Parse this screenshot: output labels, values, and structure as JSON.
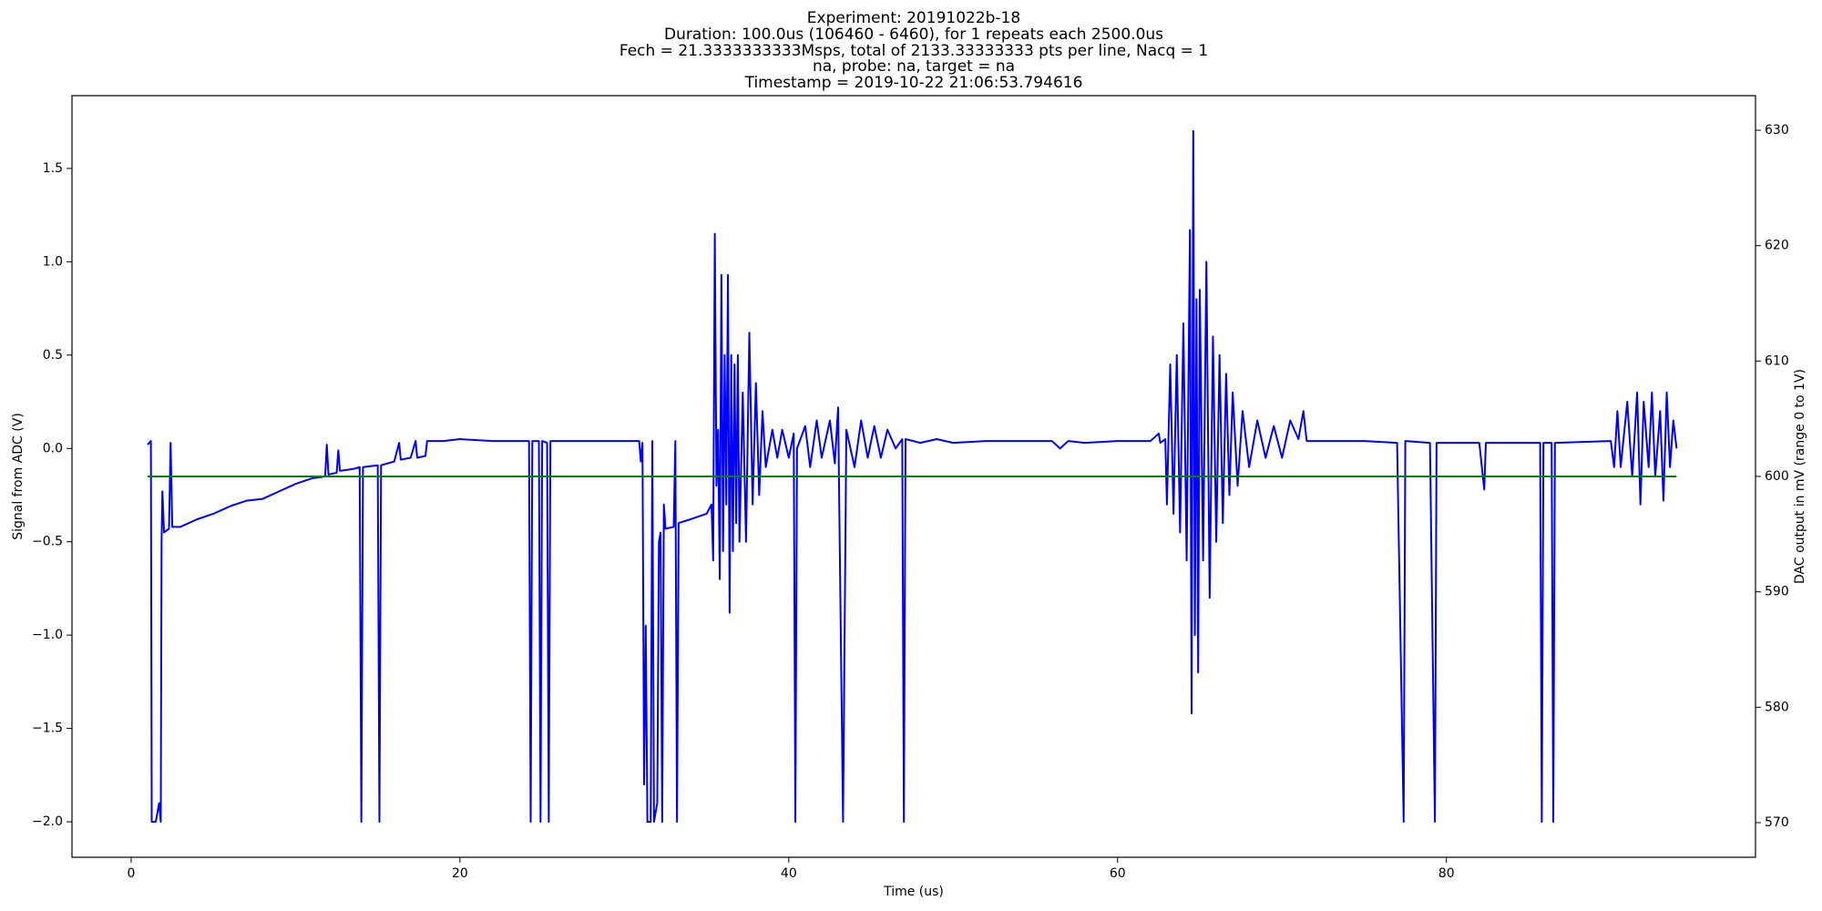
{
  "chart_data": {
    "type": "line",
    "title": [
      "Experiment: 20191022b-18",
      "Duration: 100.0us (106460 - 6460), for 1 repeats each 2500.0us",
      "Fech = 21.3333333333Msps, total of 2133.33333333 pts per line, Nacq = 1",
      "na, probe: na, target = na",
      "Timestamp = 2019-10-22 21:06:53.794616"
    ],
    "xlabel": "Time (us)",
    "ylabel": "Signal from ADC (V)",
    "y2label": "DAC output in mV (range 0 to 1V)",
    "ylabel_color": "#0000ff",
    "y2label_color": "#008000",
    "xlim": [
      -3.6,
      98.8
    ],
    "ylim": [
      -2.19,
      1.89
    ],
    "y2lim": [
      567,
      633
    ],
    "xticks": [
      0,
      20,
      40,
      60,
      80
    ],
    "yticks": [
      {
        "value": -2.0,
        "label": "−2.0"
      },
      {
        "value": -1.5,
        "label": "−1.5"
      },
      {
        "value": -1.0,
        "label": "−1.0"
      },
      {
        "value": -0.5,
        "label": "−0.5"
      },
      {
        "value": 0.0,
        "label": "0.0"
      },
      {
        "value": 0.5,
        "label": "0.5"
      },
      {
        "value": 1.0,
        "label": "1.0"
      },
      {
        "value": 1.5,
        "label": "1.5"
      }
    ],
    "y2ticks": [
      570,
      580,
      590,
      600,
      610,
      620,
      630
    ],
    "grid": false,
    "series": [
      {
        "color": "#0000ff",
        "x": [
          1.0,
          1.1,
          1.2,
          1.25,
          1.5,
          1.7,
          1.8,
          1.85,
          1.9,
          2.0,
          2.3,
          2.4,
          2.5,
          3,
          4,
          5,
          6,
          7,
          8,
          9,
          10,
          11,
          11.8,
          11.9,
          12,
          12.5,
          12.6,
          12.7,
          13.5,
          13.9,
          14.0,
          14.1,
          15,
          15.1,
          15.2,
          16,
          16.3,
          16.4,
          17,
          17.3,
          17.4,
          17.9,
          18,
          19,
          20,
          22,
          24.2,
          24.3,
          24.4,
          24.8,
          24.9,
          25,
          25.3,
          25.4,
          25.5,
          28,
          30.9,
          31,
          31.1,
          31.2,
          31.3,
          31.4,
          31.6,
          31.7,
          31.8,
          32,
          32.1,
          32.2,
          32.3,
          32.4,
          32.5,
          33,
          33.1,
          33.2,
          33.3,
          34,
          35,
          35.3,
          35.4,
          35.5,
          35.6,
          35.7,
          35.8,
          35.9,
          36,
          36.1,
          36.2,
          36.3,
          36.4,
          36.5,
          36.6,
          36.7,
          36.8,
          36.9,
          37,
          37.2,
          37.4,
          37.6,
          37.8,
          38,
          38.2,
          38.4,
          38.6,
          39,
          39.3,
          39.6,
          40,
          40.3,
          40.4,
          40.5,
          41,
          41.3,
          41.7,
          42,
          42.5,
          42.8,
          43,
          43.3,
          43.5,
          44,
          44.4,
          44.8,
          45.2,
          45.6,
          46,
          46.5,
          46.9,
          47,
          47.1,
          48,
          49,
          50,
          52,
          54,
          56,
          56.5,
          57,
          58,
          60,
          62,
          62.5,
          62.6,
          62.9,
          63.0,
          63.2,
          63.4,
          63.6,
          63.8,
          64,
          64.2,
          64.4,
          64.5,
          64.6,
          64.7,
          64.8,
          64.9,
          65,
          65.2,
          65.4,
          65.6,
          65.8,
          66,
          66.2,
          66.4,
          66.6,
          66.8,
          67,
          67.3,
          67.6,
          68,
          68.5,
          69,
          69.5,
          70,
          70.5,
          71,
          71.3,
          71.5,
          73,
          75,
          77,
          77.4,
          77.5,
          79,
          79.3,
          79.4,
          82,
          82.3,
          82.4,
          85.7,
          85.8,
          85.9,
          86.4,
          86.5,
          86.6,
          90,
          90.2,
          90.4,
          90.6,
          91,
          91.3,
          91.6,
          91.8,
          92,
          92.3,
          92.5,
          92.7,
          93,
          93.2,
          93.4,
          93.6,
          93.8,
          94
        ],
        "values": [
          0.02,
          0.03,
          0.04,
          -2.0,
          -2.0,
          -1.9,
          -2.0,
          -0.5,
          -0.23,
          -0.45,
          -0.43,
          0.03,
          -0.42,
          -0.42,
          -0.38,
          -0.35,
          -0.31,
          -0.28,
          -0.27,
          -0.23,
          -0.19,
          -0.16,
          -0.15,
          0.02,
          -0.14,
          -0.13,
          -0.01,
          -0.12,
          -0.11,
          -0.1,
          -2.0,
          -0.1,
          -0.09,
          -2.0,
          -0.09,
          -0.07,
          0.03,
          -0.06,
          -0.05,
          0.04,
          -0.05,
          -0.04,
          0.04,
          0.04,
          0.05,
          0.04,
          0.04,
          -2.0,
          0.04,
          0.04,
          -2.0,
          0.04,
          0.03,
          -2.0,
          0.04,
          0.04,
          0.04,
          -0.07,
          0.03,
          -1.8,
          -0.95,
          -2.0,
          -2.0,
          0.04,
          -2.0,
          -1.9,
          -0.5,
          -0.45,
          -2.0,
          -0.3,
          -0.43,
          -0.42,
          0.04,
          -2.0,
          -0.4,
          -0.38,
          -0.35,
          -0.3,
          -0.6,
          1.15,
          -0.2,
          0.1,
          -0.7,
          0.93,
          -0.55,
          0.5,
          -0.3,
          0.93,
          -0.88,
          0.5,
          -0.55,
          0.45,
          -0.4,
          0.5,
          -0.5,
          0.3,
          -0.5,
          0.62,
          -0.3,
          0.35,
          -0.25,
          0.2,
          -0.1,
          0.1,
          -0.05,
          0.1,
          -0.05,
          0.08,
          -2.0,
          0.0,
          0.12,
          -0.1,
          0.15,
          -0.05,
          0.15,
          -0.08,
          0.22,
          -2.0,
          0.1,
          -0.1,
          0.15,
          -0.05,
          0.12,
          -0.05,
          0.1,
          0.0,
          0.05,
          -2.0,
          0.05,
          0.03,
          0.05,
          0.03,
          0.04,
          0.04,
          0.04,
          0.0,
          0.04,
          0.03,
          0.04,
          0.04,
          0.08,
          0.03,
          0.05,
          -0.3,
          0.45,
          -0.35,
          0.5,
          -0.45,
          0.67,
          -0.6,
          1.17,
          -1.42,
          1.7,
          -1.0,
          0.8,
          -1.2,
          0.85,
          -0.6,
          1.0,
          -0.8,
          0.6,
          -0.5,
          0.5,
          -0.4,
          0.4,
          -0.25,
          0.3,
          -0.2,
          0.2,
          -0.1,
          0.15,
          -0.05,
          0.12,
          -0.05,
          0.15,
          0.05,
          0.2,
          0.04,
          0.04,
          0.04,
          0.03,
          -2.0,
          0.04,
          0.03,
          -2.0,
          0.03,
          0.03,
          -0.22,
          0.03,
          0.03,
          -2.0,
          0.03,
          0.03,
          -2.0,
          0.03,
          0.04,
          -0.1,
          0.2,
          -0.1,
          0.25,
          -0.15,
          0.3,
          -0.3,
          0.25,
          -0.1,
          0.3,
          -0.15,
          0.2,
          -0.28,
          0.3,
          -0.1,
          0.15,
          0.0
        ]
      },
      {
        "color": "#008000",
        "axis": "y2",
        "x": [
          1,
          94
        ],
        "values": [
          600,
          600
        ]
      }
    ]
  }
}
